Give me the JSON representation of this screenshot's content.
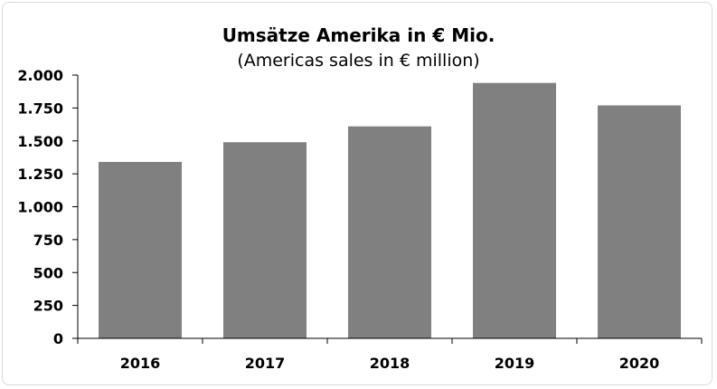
{
  "chart_data": {
    "type": "bar",
    "title": "Umsätze Amerika in € Mio.",
    "subtitle": "(Americas sales in € million)",
    "xlabel": "",
    "ylabel": "",
    "categories": [
      "2016",
      "2017",
      "2018",
      "2019",
      "2020"
    ],
    "values": [
      1340,
      1490,
      1610,
      1940,
      1770
    ],
    "ylim": [
      0,
      2000
    ],
    "yticks": [
      0,
      250,
      500,
      750,
      1000,
      1250,
      1500,
      1750,
      2000
    ],
    "ytick_labels": [
      "0",
      "250",
      "500",
      "750",
      "1.000",
      "1.250",
      "1.500",
      "1.750",
      "2.000"
    ],
    "bar_color": "#808080",
    "grid": false,
    "legend": "none"
  }
}
